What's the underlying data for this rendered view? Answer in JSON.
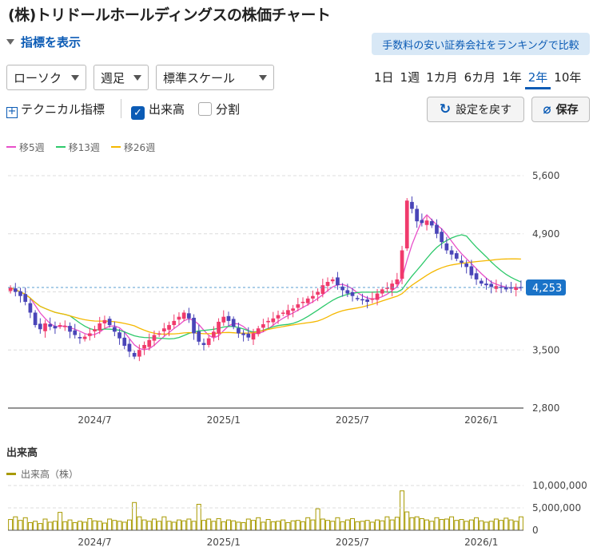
{
  "title": "(株)トリドールホールディングスの株価チャート",
  "indicator_toggle": "指標を表示",
  "promo": "手数料の安い証券会社をランキングで比較",
  "controls": {
    "chart_type": "ローソク",
    "period": "週足",
    "scale": "標準スケール",
    "ranges": [
      "1日",
      "1週",
      "1カ月",
      "6カ月",
      "1年",
      "2年",
      "10年"
    ],
    "active_range": "2年",
    "technical": "テクニカル指標",
    "volume_checkbox": "出来高",
    "split_checkbox": "分割",
    "reset": "設定を戻す",
    "save": "保存"
  },
  "legend": [
    {
      "label": "移5週",
      "color": "#e84fc9"
    },
    {
      "label": "移13週",
      "color": "#2dc96b"
    },
    {
      "label": "移26週",
      "color": "#f5b800"
    }
  ],
  "volume_section": {
    "title": "出来高",
    "legend": "出来高（株）",
    "color": "#a89a00"
  },
  "chart_data": {
    "type": "candlestick",
    "price_axis": {
      "ticks": [
        2800,
        3500,
        4200,
        4900,
        5600
      ],
      "tick_labels": [
        "2,800",
        "3,500",
        "",
        "4,900",
        "5,600"
      ],
      "ylim": [
        2800,
        5600
      ]
    },
    "time_axis": {
      "ticks": [
        "2024/7",
        "2025/1",
        "2025/7",
        "2026/1"
      ]
    },
    "last_price": 4253,
    "last_price_label": "4,253",
    "up_color": "#f03a6c",
    "down_color": "#4a45b8",
    "weeks": 104,
    "start_week": "2024-03",
    "close": [
      4250,
      4200,
      4150,
      4080,
      3950,
      3800,
      3750,
      3820,
      3780,
      3760,
      3800,
      3790,
      3720,
      3680,
      3640,
      3660,
      3700,
      3750,
      3820,
      3860,
      3800,
      3720,
      3640,
      3550,
      3480,
      3420,
      3500,
      3560,
      3620,
      3680,
      3700,
      3760,
      3800,
      3850,
      3900,
      3950,
      3880,
      3700,
      3600,
      3560,
      3640,
      3720,
      3840,
      3900,
      3850,
      3780,
      3700,
      3680,
      3650,
      3700,
      3760,
      3810,
      3850,
      3880,
      3920,
      3950,
      3980,
      4000,
      4050,
      4080,
      4120,
      4150,
      4200,
      4280,
      4320,
      4350,
      4280,
      4220,
      4180,
      4150,
      4120,
      4100,
      4080,
      4120,
      4180,
      4230,
      4250,
      4300,
      4350,
      4700,
      5300,
      5200,
      5050,
      5030,
      5060,
      5000,
      4900,
      4800,
      4700,
      4650,
      4600,
      4550,
      4500,
      4400,
      4350,
      4300,
      4280,
      4260,
      4270,
      4250,
      4230,
      4240,
      4260,
      4253
    ],
    "volume_axis": {
      "ticks": [
        0,
        5000000,
        10000000
      ],
      "tick_labels": [
        "0",
        "5,000,000",
        "10,000,000"
      ]
    },
    "volume": [
      2400000,
      3000000,
      2200000,
      2800000,
      1700000,
      2000000,
      1500000,
      2500000,
      1800000,
      2000000,
      4000000,
      1900000,
      2300000,
      1700000,
      2000000,
      1800000,
      2600000,
      2100000,
      2000000,
      1600000,
      2500000,
      2200000,
      2000000,
      1800000,
      2300000,
      6200000,
      3000000,
      2300000,
      2000000,
      2500000,
      2000000,
      3000000,
      2000000,
      1800000,
      2300000,
      2100000,
      2500000,
      2000000,
      5800000,
      2200000,
      2500000,
      2000000,
      2600000,
      1900000,
      2300000,
      2100000,
      1800000,
      1700000,
      2500000,
      2200000,
      2800000,
      1800000,
      2400000,
      1900000,
      2000000,
      2300000,
      1700000,
      2100000,
      2200000,
      1900000,
      2800000,
      2300000,
      4800000,
      2500000,
      2200000,
      2000000,
      2800000,
      1900000,
      2300000,
      2600000,
      1900000,
      2000000,
      2200000,
      1800000,
      2300000,
      2100000,
      3000000,
      2300000,
      2900000,
      8800000,
      4100000,
      2800000,
      3000000,
      2600000,
      2300000,
      2000000,
      2800000,
      2400000,
      2500000,
      3000000,
      2200000,
      2400000,
      2000000,
      2300000,
      2800000,
      2100000,
      1800000,
      2000000,
      2500000,
      2200000,
      2700000,
      2300000,
      2000000,
      3000000
    ]
  }
}
